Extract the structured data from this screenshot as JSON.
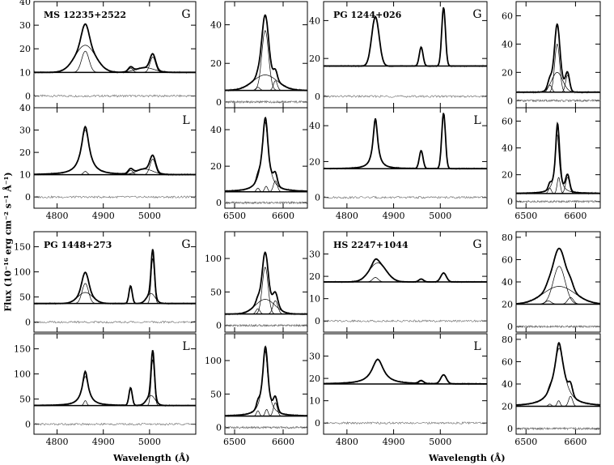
{
  "figure": {
    "ylabel": "Flux (10⁻¹⁶ erg cm⁻² s⁻¹ Å⁻¹)",
    "xlabel": "Wavelength (Å)"
  },
  "chart_data": [
    {
      "type": "line",
      "object": "MS 12235+2522",
      "ytop": 40,
      "ybottom": -5,
      "yticks": [
        0,
        10,
        20,
        30,
        40
      ],
      "continuum": 10,
      "xlim_hb": [
        4750,
        5100
      ],
      "xlim_ha": [
        6480,
        6650
      ],
      "hb_xticks": [
        4800,
        4900,
        5000
      ],
      "ha_xticks": [
        6500,
        6600
      ],
      "ha_panel": {
        "ylim": [
          -3,
          52
        ],
        "yticks": [
          0,
          20,
          40
        ],
        "continuum": 6
      },
      "rows": [
        {
          "fit_label": "G",
          "hb_lines": [
            {
              "center": 4861,
              "amp": 11.5,
              "width": 22,
              "profile": "gauss"
            },
            {
              "center": 4861,
              "amp": 9,
              "width": 8,
              "profile": "gauss"
            },
            {
              "center": 4959,
              "amp": 1.8,
              "width": 5,
              "profile": "gauss"
            },
            {
              "center": 5007,
              "amp": 6.5,
              "width": 6,
              "profile": "gauss"
            },
            {
              "center": 4990,
              "amp": 2,
              "width": 20,
              "profile": "gauss"
            }
          ],
          "ha_lines": [
            {
              "center": 6563,
              "amp": 31,
              "width": 7,
              "profile": "gauss"
            },
            {
              "center": 6563,
              "amp": 8,
              "width": 25,
              "profile": "gauss"
            },
            {
              "center": 6584,
              "amp": 5,
              "width": 4,
              "profile": "gauss"
            },
            {
              "center": 6548,
              "amp": 1.6,
              "width": 4,
              "profile": "gauss"
            }
          ]
        },
        {
          "fit_label": "L",
          "hb_lines": [
            {
              "center": 4861,
              "amp": 20,
              "width": 11,
              "profile": "lorentz"
            },
            {
              "center": 4861,
              "amp": 1.5,
              "width": 4,
              "profile": "gauss"
            },
            {
              "center": 4959,
              "amp": 2,
              "width": 5,
              "profile": "gauss"
            },
            {
              "center": 5007,
              "amp": 7,
              "width": 6,
              "profile": "gauss"
            },
            {
              "center": 4990,
              "amp": 2.5,
              "width": 18,
              "profile": "gauss"
            }
          ],
          "ha_lines": [
            {
              "center": 6563,
              "amp": 38,
              "width": 8,
              "profile": "lorentz"
            },
            {
              "center": 6565,
              "amp": 3,
              "width": 3,
              "profile": "gauss"
            },
            {
              "center": 6584,
              "amp": 6,
              "width": 4,
              "profile": "gauss"
            },
            {
              "center": 6548,
              "amp": 2,
              "width": 3,
              "profile": "gauss"
            }
          ]
        }
      ]
    },
    {
      "type": "line",
      "object": "PG 1244+026",
      "ytop": 50,
      "ybottom": -6,
      "yticks": [
        0,
        20,
        40
      ],
      "continuum": 16,
      "xlim_hb": [
        4750,
        5100
      ],
      "xlim_ha": [
        6480,
        6650
      ],
      "hb_xticks": [
        4800,
        4900,
        5000
      ],
      "ha_xticks": [
        6500,
        6600
      ],
      "ha_panel": {
        "ylim": [
          -5,
          70
        ],
        "yticks": [
          0,
          20,
          40,
          60
        ],
        "continuum": 6
      },
      "rows": [
        {
          "fit_label": "G",
          "hb_lines": [
            {
              "center": 4861,
              "amp": 26,
              "width": 8,
              "profile": "gauss"
            },
            {
              "center": 4959,
              "amp": 10,
              "width": 4,
              "profile": "gauss"
            },
            {
              "center": 5007,
              "amp": 31,
              "width": 4,
              "profile": "gauss"
            }
          ],
          "ha_lines": [
            {
              "center": 6563,
              "amp": 34,
              "width": 5,
              "profile": "gauss"
            },
            {
              "center": 6563,
              "amp": 14,
              "width": 11,
              "profile": "gauss"
            },
            {
              "center": 6584,
              "amp": 12,
              "width": 4,
              "profile": "gauss"
            },
            {
              "center": 6548,
              "amp": 5,
              "width": 4,
              "profile": "gauss"
            }
          ]
        },
        {
          "fit_label": "L",
          "hb_lines": [
            {
              "center": 4861,
              "amp": 28,
              "width": 6,
              "profile": "lorentz"
            },
            {
              "center": 4959,
              "amp": 10,
              "width": 4,
              "profile": "gauss"
            },
            {
              "center": 5007,
              "amp": 31,
              "width": 4,
              "profile": "gauss"
            }
          ],
          "ha_lines": [
            {
              "center": 6563,
              "amp": 44,
              "width": 5,
              "profile": "lorentz"
            },
            {
              "center": 6566,
              "amp": 12,
              "width": 3,
              "profile": "gauss"
            },
            {
              "center": 6584,
              "amp": 12,
              "width": 4,
              "profile": "gauss"
            },
            {
              "center": 6548,
              "amp": 4,
              "width": 3,
              "profile": "gauss"
            }
          ]
        }
      ]
    },
    {
      "type": "line",
      "object": "PG 1448+273",
      "ytop": 180,
      "ybottom": -20,
      "yticks": [
        0,
        50,
        100,
        150
      ],
      "continuum": 37,
      "xlim_hb": [
        4750,
        5100
      ],
      "xlim_ha": [
        6480,
        6650
      ],
      "hb_xticks": [
        4800,
        4900,
        5000
      ],
      "ha_xticks": [
        6500,
        6600
      ],
      "ha_panel": {
        "ylim": [
          -10,
          140
        ],
        "yticks": [
          0,
          50,
          100
        ],
        "continuum": 17
      },
      "rows": [
        {
          "fit_label": "G",
          "hb_lines": [
            {
              "center": 4861,
              "amp": 40,
              "width": 7,
              "profile": "gauss"
            },
            {
              "center": 4861,
              "amp": 22,
              "width": 16,
              "profile": "gauss"
            },
            {
              "center": 4959,
              "amp": 35,
              "width": 3.5,
              "profile": "gauss"
            },
            {
              "center": 5007,
              "amp": 90,
              "width": 3.5,
              "profile": "gauss"
            },
            {
              "center": 5003,
              "amp": 20,
              "width": 9,
              "profile": "gauss"
            }
          ],
          "ha_lines": [
            {
              "center": 6563,
              "amp": 70,
              "width": 6,
              "profile": "gauss"
            },
            {
              "center": 6563,
              "amp": 22,
              "width": 20,
              "profile": "gauss"
            },
            {
              "center": 6584,
              "amp": 20,
              "width": 5,
              "profile": "gauss"
            },
            {
              "center": 6548,
              "amp": 8,
              "width": 4,
              "profile": "gauss"
            }
          ]
        },
        {
          "fit_label": "L",
          "hb_lines": [
            {
              "center": 4861,
              "amp": 58,
              "width": 9,
              "profile": "lorentz"
            },
            {
              "center": 4861,
              "amp": 10,
              "width": 3,
              "profile": "gauss"
            },
            {
              "center": 4959,
              "amp": 35,
              "width": 3.5,
              "profile": "gauss"
            },
            {
              "center": 5007,
              "amp": 92,
              "width": 3.5,
              "profile": "gauss"
            },
            {
              "center": 5003,
              "amp": 20,
              "width": 9,
              "profile": "gauss"
            }
          ],
          "ha_lines": [
            {
              "center": 6563,
              "amp": 97,
              "width": 7,
              "profile": "lorentz"
            },
            {
              "center": 6566,
              "amp": 10,
              "width": 3,
              "profile": "gauss"
            },
            {
              "center": 6584,
              "amp": 20,
              "width": 4,
              "profile": "gauss"
            },
            {
              "center": 6548,
              "amp": 8,
              "width": 3,
              "profile": "gauss"
            }
          ]
        }
      ]
    },
    {
      "type": "line",
      "object": "HS 2247+1044",
      "ytop": 40,
      "ybottom": -5,
      "yticks": [
        0,
        10,
        20,
        30
      ],
      "continuum": 17.5,
      "xlim_hb": [
        4750,
        5100
      ],
      "xlim_ha": [
        6480,
        6650
      ],
      "hb_xticks": [
        4800,
        4900,
        5000
      ],
      "ha_xticks": [
        6500,
        6600
      ],
      "ha_panel": {
        "ylim": [
          -5,
          85
        ],
        "yticks": [
          0,
          20,
          40,
          60,
          80
        ],
        "continuum": 20
      },
      "rows": [
        {
          "fit_label": "G",
          "hb_lines": [
            {
              "center": 4866,
              "amp": 8.5,
              "width": 18,
              "profile": "gauss"
            },
            {
              "center": 4861,
              "amp": 2,
              "width": 6,
              "profile": "gauss"
            },
            {
              "center": 4959,
              "amp": 1.3,
              "width": 5,
              "profile": "gauss"
            },
            {
              "center": 5007,
              "amp": 4,
              "width": 6,
              "profile": "gauss"
            }
          ],
          "ha_lines": [
            {
              "center": 6567,
              "amp": 34,
              "width": 12,
              "profile": "gauss"
            },
            {
              "center": 6567,
              "amp": 16,
              "width": 32,
              "profile": "gauss"
            },
            {
              "center": 6590,
              "amp": 6,
              "width": 6,
              "profile": "gauss"
            },
            {
              "center": 6545,
              "amp": 3,
              "width": 6,
              "profile": "gauss"
            }
          ]
        },
        {
          "fit_label": "L",
          "hb_lines": [
            {
              "center": 4866,
              "amp": 11,
              "width": 15,
              "profile": "lorentz"
            },
            {
              "center": 4959,
              "amp": 1.3,
              "width": 5,
              "profile": "gauss"
            },
            {
              "center": 5007,
              "amp": 4,
              "width": 6,
              "profile": "gauss"
            }
          ],
          "ha_lines": [
            {
              "center": 6567,
              "amp": 52,
              "width": 13,
              "profile": "lorentz"
            },
            {
              "center": 6566,
              "amp": 5,
              "width": 3,
              "profile": "gauss"
            },
            {
              "center": 6590,
              "amp": 9,
              "width": 4,
              "profile": "gauss"
            },
            {
              "center": 6548,
              "amp": 2,
              "width": 3,
              "profile": "gauss"
            }
          ]
        }
      ]
    }
  ]
}
